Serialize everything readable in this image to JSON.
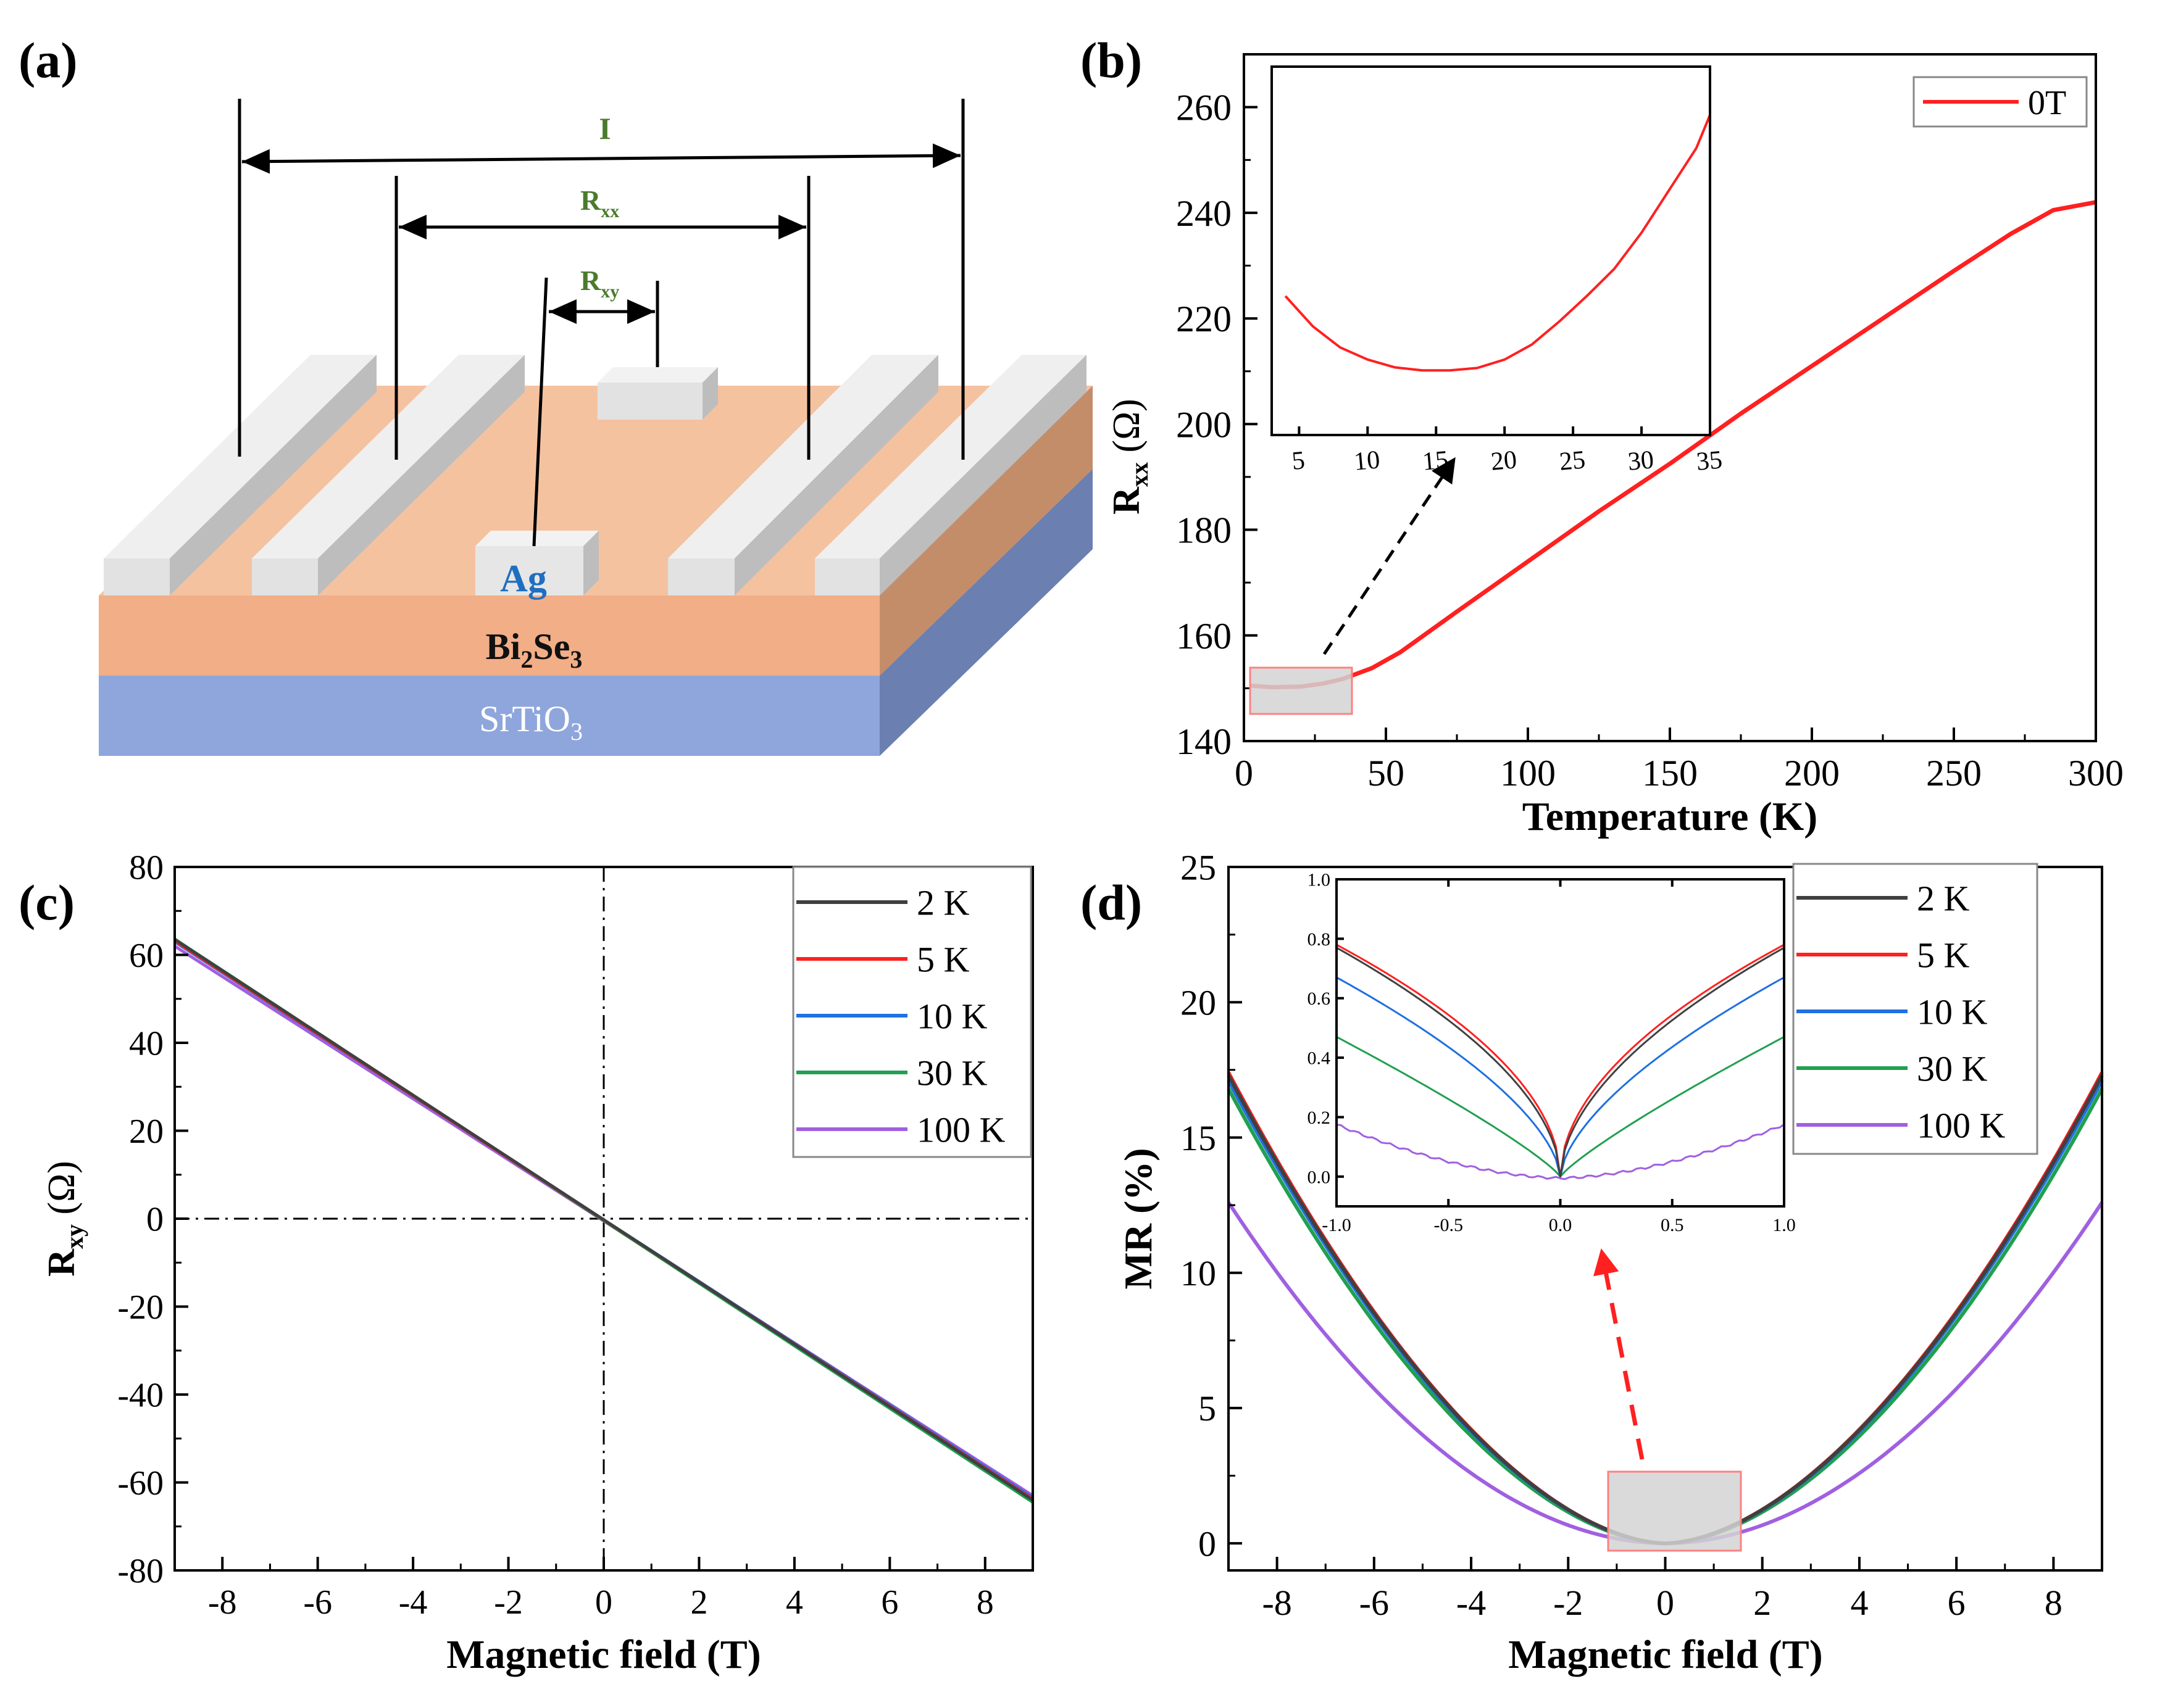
{
  "panel_labels": {
    "a": "(a)",
    "b": "(b)",
    "c": "(c)",
    "d": "(d)"
  },
  "schematic": {
    "label_I": "I",
    "label_Rxx_main": "R",
    "label_Rxx_sub": "xx",
    "label_Rxy_main": "R",
    "label_Rxy_sub": "xy",
    "layer_ag": "Ag",
    "layer_bise_a": "Bi",
    "layer_bise_b": "2",
    "layer_bise_c": "Se",
    "layer_bise_d": "3",
    "layer_sto_a": "SrTiO",
    "layer_sto_b": "3",
    "colors": {
      "electrode": "#e6e6e6",
      "bise": "#f2b28c",
      "sto": "#8fa8de",
      "label_green": "#4b7a2c",
      "ag_blue": "#1f6fc0"
    }
  },
  "chart_data": [
    {
      "id": "b",
      "type": "line",
      "title": "",
      "xlabel": "Temperature (K)",
      "ylabel_main": "R",
      "ylabel_sub": "xx",
      "ylabel_unit": " (Ω)",
      "xlim": [
        0,
        300
      ],
      "ylim": [
        140,
        270
      ],
      "xticks": [
        0,
        50,
        100,
        150,
        200,
        250,
        300
      ],
      "yticks": [
        140,
        160,
        180,
        200,
        220,
        240,
        260
      ],
      "legend": "0T",
      "series": [
        {
          "name": "0T",
          "color": "#ff2020",
          "x": [
            2,
            10,
            20,
            28,
            35,
            45,
            55,
            75,
            100,
            125,
            150,
            175,
            200,
            225,
            250,
            270,
            285,
            300
          ],
          "y": [
            150.5,
            150.2,
            150.3,
            150.9,
            151.8,
            153.8,
            156.8,
            164.5,
            174.0,
            183.5,
            192.5,
            202.0,
            211.0,
            220.0,
            229.0,
            236.0,
            240.5,
            242.0
          ]
        }
      ],
      "inset": {
        "xlim": [
          3,
          35
        ],
        "ylim": [
          203,
          264
        ],
        "xticks": [
          5,
          10,
          15,
          20,
          25,
          30,
          35
        ],
        "yticks": [],
        "series": [
          {
            "name": "0T inset",
            "color": "#ff2020",
            "x": [
              4,
              6,
              8,
              10,
              12,
              14,
              16,
              18,
              20,
              22,
              24,
              26,
              28,
              30,
              32,
              34,
              35
            ],
            "y": [
              226,
              221,
              217.5,
              215.5,
              214.2,
              213.7,
              213.7,
              214.1,
              215.5,
              218.0,
              221.8,
              226.0,
              230.5,
              236.5,
              243.5,
              250.5,
              256.0
            ]
          }
        ]
      }
    },
    {
      "id": "c",
      "type": "line",
      "xlabel": "Magnetic field  (T)",
      "ylabel_main": "R",
      "ylabel_sub": "xy",
      "ylabel_unit": " (Ω)",
      "xlim": [
        -9,
        9
      ],
      "ylim": [
        -80,
        80
      ],
      "xticks": [
        -8,
        -6,
        -4,
        -2,
        0,
        2,
        4,
        6,
        8
      ],
      "xtick_labels": [
        "-8",
        "-6",
        "-4",
        "-2",
        "0",
        "2",
        "4",
        "6",
        "8"
      ],
      "yticks": [
        -80,
        -60,
        -40,
        -20,
        0,
        20,
        40,
        60,
        80
      ],
      "ytick_labels": [
        "-80",
        "-60",
        "-40",
        "-20",
        "0",
        "20",
        "40",
        "60",
        "80"
      ],
      "series": [
        {
          "name": "2 K",
          "color": "#404040",
          "x": [
            -9,
            9
          ],
          "y": [
            63.5,
            -64
          ]
        },
        {
          "name": "5 K",
          "color": "#ff2020",
          "x": [
            -9,
            9
          ],
          "y": [
            63.2,
            -63.8
          ]
        },
        {
          "name": "10 K",
          "color": "#2070e0",
          "x": [
            -9,
            9
          ],
          "y": [
            63.0,
            -63.5
          ]
        },
        {
          "name": "30 K",
          "color": "#20a050",
          "x": [
            -9,
            9
          ],
          "y": [
            63.6,
            -64.5
          ]
        },
        {
          "name": "100 K",
          "color": "#a060e0",
          "x": [
            -9,
            9
          ],
          "y": [
            62.0,
            -63.0
          ]
        }
      ]
    },
    {
      "id": "d",
      "type": "line",
      "xlabel": "Magnetic field  (T)",
      "ylabel": "MR (%)",
      "xlim": [
        -9,
        9
      ],
      "ylim": [
        -1,
        25
      ],
      "xticks": [
        -8,
        -6,
        -4,
        -2,
        0,
        2,
        4,
        6,
        8
      ],
      "yticks": [
        0,
        5,
        10,
        15,
        20,
        25
      ],
      "series": [
        {
          "name": "2 K",
          "color": "#404040",
          "peak": 17.3,
          "exp": 1.75
        },
        {
          "name": "5 K",
          "color": "#ff2020",
          "peak": 17.4,
          "exp": 1.75
        },
        {
          "name": "10 K",
          "color": "#2070e0",
          "peak": 17.1,
          "exp": 1.75
        },
        {
          "name": "30 K",
          "color": "#20a050",
          "peak": 16.8,
          "exp": 1.78
        },
        {
          "name": "100 K",
          "color": "#a060e0",
          "peak": 12.6,
          "exp": 1.95
        }
      ],
      "inset": {
        "xlim": [
          -1.0,
          1.0
        ],
        "ylim": [
          -0.1,
          1.0
        ],
        "xticks": [
          -1.0,
          -0.5,
          0.0,
          0.5,
          1.0
        ],
        "xtick_labels": [
          "-1.0",
          "-0.5",
          "0.0",
          "0.5",
          "1.0"
        ],
        "yticks": [
          0.0,
          0.2,
          0.4,
          0.6,
          0.8,
          1.0
        ],
        "ytick_labels": [
          "0.0",
          "0.2",
          "0.4",
          "0.6",
          "0.8",
          "1.0"
        ],
        "series": [
          {
            "name": "2 K",
            "color": "#404040",
            "end": 0.77,
            "p": 0.55
          },
          {
            "name": "5 K",
            "color": "#ff2020",
            "end": 0.78,
            "p": 0.52
          },
          {
            "name": "10 K",
            "color": "#2070e0",
            "end": 0.67,
            "p": 0.62
          },
          {
            "name": "30 K",
            "color": "#20a050",
            "end": 0.47,
            "p": 0.85
          },
          {
            "name": "100 K",
            "color": "#a060e0",
            "end": 0.18,
            "p": 1.7
          }
        ]
      }
    }
  ]
}
